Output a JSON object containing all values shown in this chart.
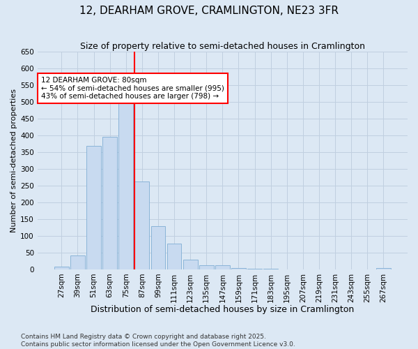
{
  "title": "12, DEARHAM GROVE, CRAMLINGTON, NE23 3FR",
  "subtitle": "Size of property relative to semi-detached houses in Cramlington",
  "xlabel": "Distribution of semi-detached houses by size in Cramlington",
  "ylabel": "Number of semi-detached properties",
  "categories": [
    "27sqm",
    "39sqm",
    "51sqm",
    "63sqm",
    "75sqm",
    "87sqm",
    "99sqm",
    "111sqm",
    "123sqm",
    "135sqm",
    "147sqm",
    "159sqm",
    "171sqm",
    "183sqm",
    "195sqm",
    "207sqm",
    "219sqm",
    "231sqm",
    "243sqm",
    "255sqm",
    "267sqm"
  ],
  "values": [
    8,
    42,
    368,
    395,
    521,
    263,
    130,
    77,
    28,
    12,
    12,
    3,
    1,
    1,
    0,
    0,
    0,
    0,
    0,
    0,
    3
  ],
  "bar_color": "#c8daf0",
  "bar_edge_color": "#8ab4d8",
  "grid_color": "#c0cfe0",
  "background_color": "#dce8f4",
  "plot_bg_color": "#dce8f4",
  "vline_color": "red",
  "vline_x_index": 5,
  "annotation_text": "12 DEARHAM GROVE: 80sqm\n← 54% of semi-detached houses are smaller (995)\n43% of semi-detached houses are larger (798) →",
  "annotation_box_color": "white",
  "annotation_box_edge": "red",
  "ylim": [
    0,
    650
  ],
  "yticks": [
    0,
    50,
    100,
    150,
    200,
    250,
    300,
    350,
    400,
    450,
    500,
    550,
    600,
    650
  ],
  "footnote": "Contains HM Land Registry data © Crown copyright and database right 2025.\nContains public sector information licensed under the Open Government Licence v3.0.",
  "title_fontsize": 11,
  "subtitle_fontsize": 9,
  "xlabel_fontsize": 9,
  "ylabel_fontsize": 8,
  "tick_fontsize": 7.5,
  "annotation_fontsize": 7.5,
  "footnote_fontsize": 6.5
}
